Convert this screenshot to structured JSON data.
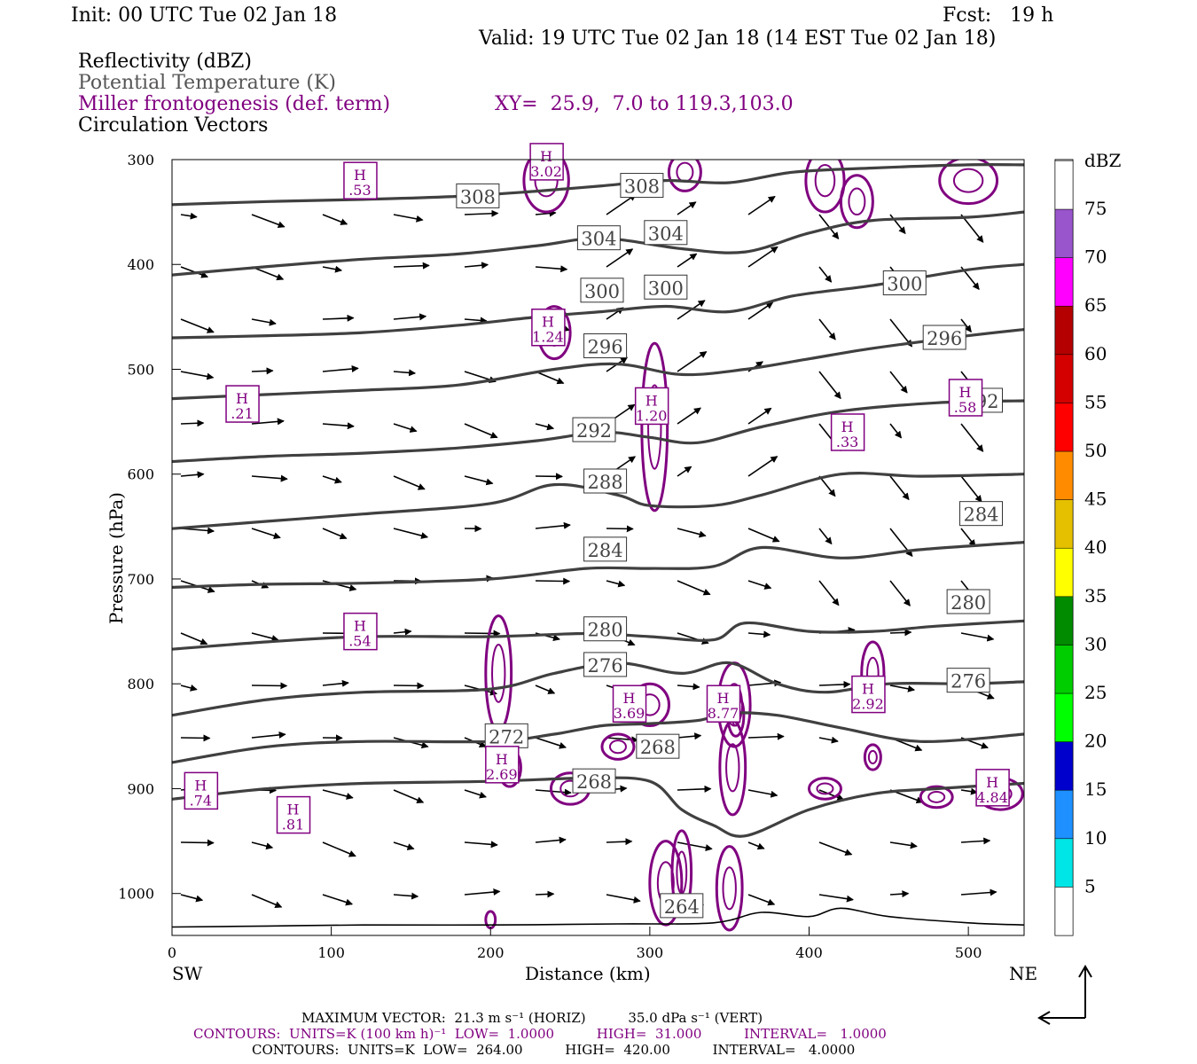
{
  "header": {
    "init": "Init: 00 UTC Tue 02 Jan 18",
    "fcst": "Fcst:   19 h",
    "valid": "Valid: 19 UTC Tue 02 Jan 18 (14 EST Tue 02 Jan 18)",
    "field1": "Reflectivity (dBZ)",
    "field2": "Potential Temperature (K)",
    "field3": "Miller frontogenesis (def. term)",
    "xy": "XY=  25.9,  7.0 to 119.3,103.0",
    "field4": "Circulation Vectors"
  },
  "axes": {
    "ylabel": "Pressure (hPa)",
    "xlabel": "Distance (km)",
    "left_end": "SW",
    "right_end": "NE"
  },
  "footer": {
    "max_vector": "MAXIMUM VECTOR:  21.3 m s⁻¹ (HORIZ)          35.0 dPa s⁻¹ (VERT)",
    "contours1": "CONTOURS:  UNITS=K (100 km h)⁻¹  LOW=  1.0000          HIGH=  31.000          INTERVAL=   1.0000",
    "contours2": "CONTOURS:  UNITS=K  LOW=  264.00          HIGH=  420.00          INTERVAL=   4.0000"
  },
  "colors": {
    "theta": "#404040",
    "fronto": "#800080",
    "vector": "#000000"
  },
  "chart_data": {
    "type": "cross-section",
    "xlim": [
      0,
      535
    ],
    "ylim": [
      1040,
      300
    ],
    "x_ticks": [
      "0",
      "100",
      "200",
      "300",
      "400",
      "500"
    ],
    "y_ticks": [
      "300",
      "400",
      "500",
      "600",
      "700",
      "800",
      "900",
      "1000"
    ],
    "colorbar": {
      "title": "dBZ",
      "labels": [
        "5",
        "10",
        "15",
        "20",
        "25",
        "30",
        "35",
        "40",
        "45",
        "50",
        "55",
        "60",
        "65",
        "70",
        "75"
      ],
      "colors": [
        "#ffffff",
        "#00e5e5",
        "#1e90ff",
        "#0000cd",
        "#00ff00",
        "#00cd00",
        "#008b00",
        "#ffff00",
        "#e5c000",
        "#ff8c00",
        "#ff0000",
        "#d40000",
        "#b40000",
        "#ff00ff",
        "#9955cc",
        "#ffffff"
      ]
    },
    "theta_contours": [
      {
        "label": "264",
        "points": [
          [
            0,
            1032
          ],
          [
            60,
            1031
          ],
          [
            120,
            1030
          ],
          [
            200,
            1030
          ],
          [
            280,
            1029
          ],
          [
            340,
            1028
          ],
          [
            370,
            1018
          ],
          [
            400,
            1022
          ],
          [
            420,
            1014
          ],
          [
            450,
            1022
          ],
          [
            500,
            1028
          ],
          [
            535,
            1030
          ]
        ],
        "labels_at": [
          [
            320,
            1012
          ]
        ]
      },
      {
        "label": "268",
        "points": [
          [
            0,
            910
          ],
          [
            60,
            900
          ],
          [
            120,
            895
          ],
          [
            200,
            893
          ],
          [
            260,
            890
          ],
          [
            300,
            893
          ],
          [
            320,
            920
          ],
          [
            340,
            935
          ],
          [
            360,
            945
          ],
          [
            400,
            920
          ],
          [
            440,
            905
          ],
          [
            480,
            900
          ],
          [
            535,
            895
          ]
        ],
        "labels_at": [
          [
            265,
            893
          ],
          [
            305,
            860
          ]
        ]
      },
      {
        "label": "272",
        "points": [
          [
            0,
            875
          ],
          [
            60,
            860
          ],
          [
            120,
            855
          ],
          [
            200,
            855
          ],
          [
            240,
            848
          ],
          [
            270,
            840
          ],
          [
            300,
            838
          ],
          [
            330,
            835
          ],
          [
            350,
            828
          ],
          [
            380,
            830
          ],
          [
            420,
            842
          ],
          [
            470,
            855
          ],
          [
            535,
            848
          ]
        ],
        "labels_at": [
          [
            210,
            850
          ]
        ]
      },
      {
        "label": "276",
        "points": [
          [
            0,
            830
          ],
          [
            60,
            815
          ],
          [
            120,
            808
          ],
          [
            200,
            805
          ],
          [
            240,
            790
          ],
          [
            280,
            780
          ],
          [
            320,
            790
          ],
          [
            350,
            780
          ],
          [
            380,
            800
          ],
          [
            410,
            808
          ],
          [
            450,
            800
          ],
          [
            500,
            800
          ],
          [
            535,
            798
          ]
        ],
        "labels_at": [
          [
            272,
            782
          ],
          [
            500,
            797
          ]
        ]
      },
      {
        "label": "280",
        "points": [
          [
            0,
            767
          ],
          [
            60,
            760
          ],
          [
            120,
            755
          ],
          [
            200,
            755
          ],
          [
            260,
            752
          ],
          [
            300,
            755
          ],
          [
            340,
            758
          ],
          [
            360,
            742
          ],
          [
            400,
            750
          ],
          [
            440,
            750
          ],
          [
            480,
            745
          ],
          [
            535,
            740
          ]
        ],
        "labels_at": [
          [
            272,
            748
          ],
          [
            500,
            722
          ]
        ]
      },
      {
        "label": "284",
        "points": [
          [
            0,
            708
          ],
          [
            60,
            705
          ],
          [
            120,
            704
          ],
          [
            200,
            700
          ],
          [
            260,
            690
          ],
          [
            300,
            690
          ],
          [
            340,
            688
          ],
          [
            370,
            670
          ],
          [
            420,
            680
          ],
          [
            470,
            672
          ],
          [
            535,
            665
          ]
        ],
        "labels_at": [
          [
            272,
            672
          ],
          [
            508,
            638
          ]
        ]
      },
      {
        "label": "288",
        "points": [
          [
            0,
            652
          ],
          [
            60,
            645
          ],
          [
            120,
            638
          ],
          [
            200,
            628
          ],
          [
            240,
            610
          ],
          [
            280,
            620
          ],
          [
            300,
            630
          ],
          [
            340,
            630
          ],
          [
            370,
            620
          ],
          [
            420,
            600
          ],
          [
            470,
            602
          ],
          [
            535,
            600
          ]
        ],
        "labels_at": [
          [
            272,
            607
          ]
        ]
      },
      {
        "label": "292",
        "points": [
          [
            0,
            588
          ],
          [
            60,
            583
          ],
          [
            120,
            580
          ],
          [
            180,
            575
          ],
          [
            230,
            568
          ],
          [
            270,
            560
          ],
          [
            300,
            565
          ],
          [
            330,
            570
          ],
          [
            370,
            555
          ],
          [
            420,
            540
          ],
          [
            480,
            532
          ],
          [
            535,
            530
          ]
        ],
        "labels_at": [
          [
            265,
            558
          ],
          [
            508,
            530
          ]
        ]
      },
      {
        "label": "296",
        "points": [
          [
            0,
            528
          ],
          [
            60,
            524
          ],
          [
            120,
            520
          ],
          [
            180,
            515
          ],
          [
            240,
            500
          ],
          [
            280,
            495
          ],
          [
            320,
            505
          ],
          [
            360,
            500
          ],
          [
            400,
            490
          ],
          [
            440,
            480
          ],
          [
            500,
            468
          ],
          [
            535,
            462
          ]
        ],
        "labels_at": [
          [
            272,
            478
          ],
          [
            485,
            470
          ]
        ]
      },
      {
        "label": "300",
        "points": [
          [
            0,
            470
          ],
          [
            60,
            468
          ],
          [
            120,
            465
          ],
          [
            180,
            458
          ],
          [
            230,
            450
          ],
          [
            270,
            445
          ],
          [
            310,
            440
          ],
          [
            350,
            445
          ],
          [
            390,
            430
          ],
          [
            440,
            420
          ],
          [
            500,
            405
          ],
          [
            535,
            400
          ]
        ],
        "labels_at": [
          [
            270,
            425
          ],
          [
            310,
            422
          ],
          [
            460,
            418
          ]
        ]
      },
      {
        "label": "304",
        "points": [
          [
            0,
            410
          ],
          [
            60,
            402
          ],
          [
            120,
            395
          ],
          [
            180,
            390
          ],
          [
            230,
            382
          ],
          [
            270,
            375
          ],
          [
            320,
            385
          ],
          [
            360,
            388
          ],
          [
            400,
            370
          ],
          [
            440,
            358
          ],
          [
            500,
            355
          ],
          [
            535,
            350
          ]
        ],
        "labels_at": [
          [
            268,
            375
          ],
          [
            310,
            370
          ]
        ]
      },
      {
        "label": "308",
        "points": [
          [
            0,
            343
          ],
          [
            60,
            340
          ],
          [
            120,
            338
          ],
          [
            180,
            335
          ],
          [
            230,
            330
          ],
          [
            270,
            325
          ],
          [
            310,
            320
          ],
          [
            350,
            322
          ],
          [
            390,
            312
          ],
          [
            440,
            308
          ],
          [
            500,
            305
          ],
          [
            535,
            305
          ]
        ],
        "labels_at": [
          [
            192,
            335
          ],
          [
            295,
            325
          ]
        ]
      }
    ],
    "fronto_maxima": [
      {
        "label": "H",
        "value": ".53",
        "x": 118,
        "y": 323
      },
      {
        "label": "H",
        "value": "3.02",
        "x": 235,
        "y": 305
      },
      {
        "label": "H",
        "value": "1.24",
        "x": 236,
        "y": 463
      },
      {
        "label": "H",
        "value": ".21",
        "x": 44,
        "y": 536
      },
      {
        "label": "H",
        "value": "1.20",
        "x": 301,
        "y": 538
      },
      {
        "label": "H",
        "value": ".33",
        "x": 424,
        "y": 563
      },
      {
        "label": "H",
        "value": ".58",
        "x": 498,
        "y": 530
      },
      {
        "label": "H",
        "value": ".54",
        "x": 118,
        "y": 753
      },
      {
        "label": "H",
        "value": "3.69",
        "x": 287,
        "y": 822
      },
      {
        "label": "H",
        "value": "8.77",
        "x": 346,
        "y": 822
      },
      {
        "label": "H",
        "value": "2.92",
        "x": 437,
        "y": 813
      },
      {
        "label": "H",
        "value": "2.69",
        "x": 207,
        "y": 880
      },
      {
        "label": "H",
        "value": ".74",
        "x": 18,
        "y": 905
      },
      {
        "label": "H",
        "value": ".81",
        "x": 76,
        "y": 928
      },
      {
        "label": "H",
        "value": "4.84",
        "x": 515,
        "y": 902
      }
    ]
  }
}
